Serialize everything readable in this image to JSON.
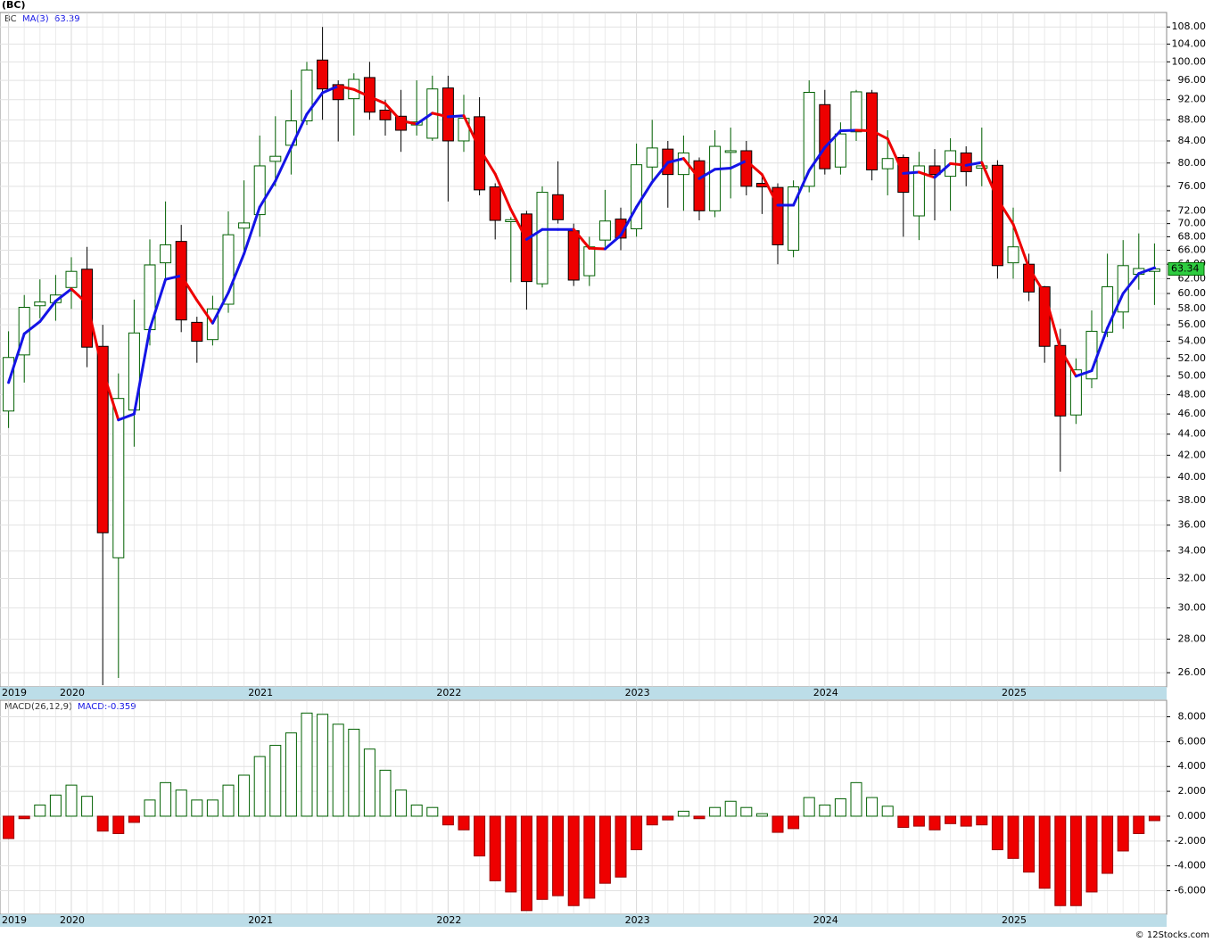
{
  "chart_data": [
    {
      "type": "candlestick",
      "title": "(BC)",
      "ticker": "BC",
      "categories": [
        "2019",
        null,
        null,
        null,
        "2020",
        null,
        null,
        null,
        null,
        null,
        null,
        null,
        null,
        null,
        null,
        null,
        "2021",
        null,
        null,
        null,
        null,
        null,
        null,
        null,
        null,
        null,
        null,
        null,
        "2022",
        null,
        null,
        null,
        null,
        null,
        null,
        null,
        null,
        null,
        null,
        null,
        "2023",
        null,
        null,
        null,
        null,
        null,
        null,
        null,
        null,
        null,
        null,
        null,
        "2024",
        null,
        null,
        null,
        null,
        null,
        null,
        null,
        null,
        null,
        null,
        null,
        "2025",
        null,
        null,
        null,
        null,
        null,
        null,
        null,
        null,
        null
      ],
      "open": [
        46.3,
        52.4,
        58.4,
        58.8,
        60.8,
        63.3,
        53.4,
        33.5,
        46.4,
        55.4,
        64.2,
        67.3,
        56.3,
        54.2,
        58.6,
        69.3,
        71.4,
        80.3,
        83.2,
        87.8,
        100.4,
        95.1,
        92.2,
        96.6,
        89.9,
        88.7,
        87,
        84.5,
        94.4,
        84,
        88.6,
        75.9,
        70.3,
        71.5,
        61.3,
        74.6,
        68.9,
        62.4,
        67.5,
        70.7,
        69.2,
        79.3,
        82.5,
        78,
        80.4,
        72,
        81.9,
        82.2,
        76.5,
        75.8,
        66,
        76,
        91,
        79.3,
        85.7,
        93.4,
        79,
        81,
        71.2,
        79.5,
        77.7,
        81.8,
        79.1,
        79.6,
        64.2,
        64,
        60.9,
        53.5,
        45.9,
        49.7,
        55.1,
        57.6,
        62.6,
        63
      ],
      "high": [
        55.2,
        59.8,
        61.9,
        62.5,
        65,
        66.5,
        56,
        50.3,
        59.2,
        67.6,
        73.5,
        69.8,
        57,
        59.7,
        71.9,
        77,
        85,
        88.7,
        94,
        100,
        108,
        96,
        97.5,
        100,
        92,
        94,
        96,
        97,
        97,
        93,
        92.5,
        76.5,
        71,
        72,
        76,
        80.3,
        70,
        68,
        75.4,
        72.5,
        83.5,
        88,
        84,
        85,
        81,
        86,
        86.5,
        84,
        78,
        76.5,
        77,
        96,
        94,
        87.5,
        94,
        94,
        86,
        81.5,
        82,
        82.5,
        84.5,
        83,
        86.5,
        80.5,
        72.5,
        65.5,
        61,
        55.5,
        52,
        57.8,
        65.5,
        67.5,
        68.5,
        67
      ],
      "low": [
        44.6,
        49.3,
        56.8,
        56.5,
        58,
        51,
        25.3,
        25.7,
        42.8,
        53.5,
        62,
        55.1,
        51.5,
        53.5,
        57.5,
        65.4,
        68,
        76,
        78,
        87,
        88,
        83.9,
        85,
        88,
        85,
        82,
        85,
        84,
        73.5,
        82,
        74.5,
        67.6,
        61.5,
        57.9,
        60.8,
        70,
        61,
        61,
        66.5,
        66,
        68,
        77,
        72.5,
        72,
        70.5,
        71,
        74,
        74.5,
        71.5,
        64,
        65,
        75,
        78,
        78,
        84,
        77,
        74.5,
        68,
        67.5,
        70.5,
        72,
        76,
        76,
        62,
        62,
        59,
        51.5,
        40.5,
        45,
        48.7,
        54.5,
        55.5,
        60.5,
        58.5
      ],
      "close": [
        52.1,
        58.2,
        58.9,
        59.8,
        63,
        53.3,
        35.4,
        47.6,
        55,
        63.9,
        66.8,
        56.6,
        54,
        58,
        68.3,
        70.1,
        79.5,
        81.2,
        87.8,
        98.2,
        94.2,
        92,
        96.2,
        89.5,
        88,
        86,
        87.6,
        94.2,
        84,
        88.3,
        75.4,
        70.5,
        70.6,
        61.6,
        75,
        70.6,
        61.8,
        66.5,
        70.4,
        67.8,
        79.7,
        82.7,
        78,
        81.8,
        72,
        83,
        82.2,
        76,
        75.9,
        66.8,
        75.9,
        93.5,
        79,
        85.3,
        93.6,
        78.8,
        80.8,
        75,
        79.5,
        78,
        82.2,
        78.5,
        79.5,
        63.8,
        66.5,
        60.2,
        53.4,
        45.8,
        50.7,
        55.2,
        60.9,
        63.8,
        63.4,
        63.34
      ],
      "up_color": "#006000",
      "down_color": "#ee0000",
      "ma": {
        "name": "MA(3)",
        "last": 63.39,
        "up_color": "#1414e6",
        "down_color": "#ee0000",
        "values": [
          49.3,
          54.9,
          56.4,
          59.0,
          60.6,
          58.7,
          50.6,
          45.4,
          46.0,
          55.5,
          61.9,
          62.4,
          59.1,
          56.2,
          60.1,
          65.5,
          72.6,
          76.9,
          82.8,
          89.1,
          93.4,
          94.8,
          94.1,
          92.6,
          91.2,
          87.8,
          87.2,
          89.3,
          88.6,
          88.8,
          82.6,
          78.1,
          72.2,
          67.6,
          69.1,
          69.1,
          69.1,
          66.3,
          66.2,
          68.2,
          72.6,
          76.7,
          80.1,
          80.8,
          77.3,
          78.9,
          79.1,
          80.4,
          78.0,
          72.9,
          72.9,
          78.7,
          82.8,
          85.9,
          86.0,
          85.9,
          84.4,
          78.2,
          78.4,
          77.5,
          79.9,
          79.6,
          80.1,
          73.9,
          69.9,
          63.5,
          60.0,
          53.1,
          50.0,
          50.6,
          55.6,
          60.0,
          62.7,
          63.5
        ]
      },
      "log_scale": true,
      "grid": true,
      "ylim": [
        25.2,
        111.5
      ],
      "yticks": [
        {
          "value": 26,
          "label": "26.00"
        },
        {
          "value": 28,
          "label": "28.00"
        },
        {
          "value": 30,
          "label": "30.00"
        },
        {
          "value": 32,
          "label": "32.00"
        },
        {
          "value": 34,
          "label": "34.00"
        },
        {
          "value": 36,
          "label": "36.00"
        },
        {
          "value": 38,
          "label": "38.00"
        },
        {
          "value": 40,
          "label": "40.00"
        },
        {
          "value": 42,
          "label": "42.00"
        },
        {
          "value": 44,
          "label": "44.00"
        },
        {
          "value": 46,
          "label": "46.00"
        },
        {
          "value": 48,
          "label": "48.00"
        },
        {
          "value": 50,
          "label": "50.00"
        },
        {
          "value": 52,
          "label": "52.00"
        },
        {
          "value": 54,
          "label": "54.00"
        },
        {
          "value": 56,
          "label": "56.00"
        },
        {
          "value": 58,
          "label": "58.00"
        },
        {
          "value": 60,
          "label": "60.00"
        },
        {
          "value": 62,
          "label": "62.00"
        },
        {
          "value": 64,
          "label": "64.00"
        },
        {
          "value": 66,
          "label": "66.00"
        },
        {
          "value": 68,
          "label": "68.00"
        },
        {
          "value": 70,
          "label": "70.00"
        },
        {
          "value": 72,
          "label": "72.00"
        },
        {
          "value": 76,
          "label": "76.00"
        },
        {
          "value": 80,
          "label": "80.00"
        },
        {
          "value": 84,
          "label": "84.00"
        },
        {
          "value": 88,
          "label": "88.00"
        },
        {
          "value": 92,
          "label": "92.00"
        },
        {
          "value": 96,
          "label": "96.00"
        },
        {
          "value": 100,
          "label": "100.00"
        },
        {
          "value": 104,
          "label": "104.00"
        },
        {
          "value": 108,
          "label": "108.00"
        }
      ]
    },
    {
      "type": "bar",
      "name": "MACD(26,12,9)",
      "value_label": "MACD:-0.359",
      "categories": [
        "2019",
        null,
        null,
        null,
        "2020",
        null,
        null,
        null,
        null,
        null,
        null,
        null,
        null,
        null,
        null,
        null,
        "2021",
        null,
        null,
        null,
        null,
        null,
        null,
        null,
        null,
        null,
        null,
        null,
        "2022",
        null,
        null,
        null,
        null,
        null,
        null,
        null,
        null,
        null,
        null,
        null,
        "2023",
        null,
        null,
        null,
        null,
        null,
        null,
        null,
        null,
        null,
        null,
        null,
        "2024",
        null,
        null,
        null,
        null,
        null,
        null,
        null,
        null,
        null,
        null,
        null,
        "2025",
        null,
        null,
        null,
        null,
        null,
        null,
        null,
        null,
        null
      ],
      "values": [
        -1.8,
        -0.2,
        0.9,
        1.7,
        2.5,
        1.6,
        -1.2,
        -1.4,
        -0.5,
        1.3,
        2.7,
        2.1,
        1.3,
        1.3,
        2.5,
        3.3,
        4.8,
        5.7,
        6.7,
        8.3,
        8.2,
        7.4,
        7.0,
        5.4,
        3.7,
        2.1,
        0.9,
        0.7,
        -0.7,
        -1.1,
        -3.2,
        -5.2,
        -6.1,
        -7.6,
        -6.7,
        -6.4,
        -7.2,
        -6.6,
        -5.4,
        -4.9,
        -2.7,
        -0.7,
        -0.3,
        0.4,
        -0.2,
        0.7,
        1.2,
        0.7,
        0.2,
        -1.3,
        -1.0,
        1.5,
        0.9,
        1.4,
        2.7,
        1.5,
        0.8,
        -0.9,
        -0.8,
        -1.1,
        -0.6,
        -0.8,
        -0.7,
        -2.7,
        -3.4,
        -4.5,
        -5.8,
        -7.2,
        -7.2,
        -6.1,
        -4.6,
        -2.8,
        -1.4,
        -0.359
      ],
      "up_color": "#006000",
      "down_color": "#ee0000",
      "grid": true,
      "ylim": [
        -7.9,
        9.33
      ],
      "yticks": [
        {
          "value": -6,
          "label": "-6.000"
        },
        {
          "value": -4,
          "label": "-4.000"
        },
        {
          "value": -2,
          "label": "-2.000"
        },
        {
          "value": 0,
          "label": "0.000"
        },
        {
          "value": 2,
          "label": "2.000"
        },
        {
          "value": 4,
          "label": "4.000"
        },
        {
          "value": 6,
          "label": "6.000"
        },
        {
          "value": 8,
          "label": "8.000"
        }
      ]
    }
  ],
  "footer": "© 12Stocks.com"
}
